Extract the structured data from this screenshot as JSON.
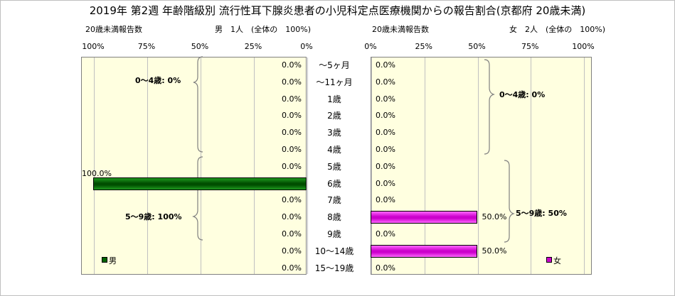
{
  "title": "2019年 第2週 年齢階級別 流行性耳下腺炎患者の小児科定点医療機関からの報告割合(京都府 20歳未満)",
  "left_subtitle": "20歳未満報告数",
  "left_header": "男　1人　(全体の　100%)",
  "right_subtitle": "20歳未満報告数",
  "right_header": "女　2人　(全体の　100%)",
  "legend": {
    "male": "男",
    "female": "女"
  },
  "colors": {
    "male": "#006400",
    "female": "#cc00cc",
    "plot_bg": "#ffffe0"
  },
  "chart_data": {
    "type": "bar",
    "orientation": "horizontal",
    "categories": [
      "～5ヶ月",
      "～11ヶ月",
      "1歳",
      "2歳",
      "3歳",
      "4歳",
      "5歳",
      "6歳",
      "7歳",
      "8歳",
      "9歳",
      "10～14歳",
      "15～19歳"
    ],
    "xlim": [
      0,
      100
    ],
    "x_ticks_left": [
      "100%",
      "75%",
      "50%",
      "25%",
      "0%"
    ],
    "x_ticks_right": [
      "0%",
      "25%",
      "50%",
      "75%",
      "100%"
    ],
    "series": [
      {
        "name": "男",
        "values": [
          0,
          0,
          0,
          0,
          0,
          0,
          0,
          100,
          0,
          0,
          0,
          0,
          0
        ],
        "labels": [
          "0.0%",
          "0.0%",
          "0.0%",
          "0.0%",
          "0.0%",
          "0.0%",
          "0.0%",
          "100.0%",
          "0.0%",
          "0.0%",
          "0.0%",
          "0.0%",
          "0.0%"
        ]
      },
      {
        "name": "女",
        "values": [
          0,
          0,
          0,
          0,
          0,
          0,
          0,
          0,
          0,
          50,
          0,
          50,
          0
        ],
        "labels": [
          "0.0%",
          "0.0%",
          "0.0%",
          "0.0%",
          "0.0%",
          "0.0%",
          "0.0%",
          "0.0%",
          "0.0%",
          "50.0%",
          "0.0%",
          "50.0%",
          "0.0%"
        ]
      }
    ],
    "group_annotations": {
      "male": [
        "0～4歳: 0%",
        "5～9歳: 100%"
      ],
      "female": [
        "0～4歳: 0%",
        "5～9歳: 50%"
      ]
    }
  }
}
